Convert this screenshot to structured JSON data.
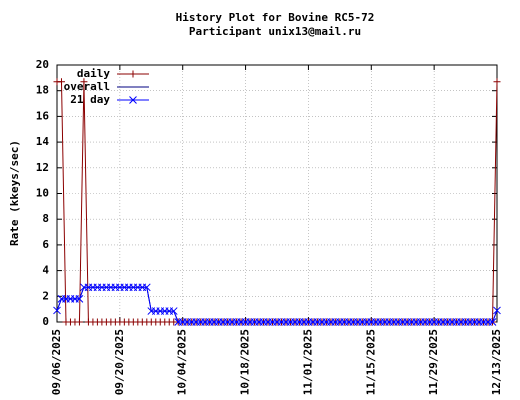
{
  "chart_data": {
    "type": "line",
    "title": "History Plot for Bovine RC5-72",
    "subtitle": "Participant unix13@mail.ru",
    "y_label": "Rate (kkeys/sec)",
    "x": [
      "09/06/2025",
      "09/07/2025",
      "09/08/2025",
      "09/09/2025",
      "09/10/2025",
      "09/11/2025",
      "09/12/2025",
      "09/13/2025",
      "09/14/2025",
      "09/15/2025",
      "09/16/2025",
      "09/17/2025",
      "09/18/2025",
      "09/19/2025",
      "09/20/2025",
      "09/21/2025",
      "09/22/2025",
      "09/23/2025",
      "09/24/2025",
      "09/25/2025",
      "09/26/2025",
      "09/27/2025",
      "09/28/2025",
      "09/29/2025",
      "09/30/2025",
      "10/01/2025",
      "10/02/2025",
      "10/03/2025",
      "10/04/2025",
      "10/05/2025",
      "10/06/2025",
      "10/07/2025",
      "10/08/2025",
      "10/09/2025",
      "10/10/2025",
      "10/11/2025",
      "10/12/2025",
      "10/13/2025",
      "10/14/2025",
      "10/15/2025",
      "10/16/2025",
      "10/17/2025",
      "10/18/2025",
      "10/19/2025",
      "10/20/2025",
      "10/21/2025",
      "10/22/2025",
      "10/23/2025",
      "10/24/2025",
      "10/25/2025",
      "10/26/2025",
      "10/27/2025",
      "10/28/2025",
      "10/29/2025",
      "10/30/2025",
      "10/31/2025",
      "11/01/2025",
      "11/02/2025",
      "11/03/2025",
      "11/04/2025",
      "11/05/2025",
      "11/06/2025",
      "11/07/2025",
      "11/08/2025",
      "11/09/2025",
      "11/10/2025",
      "11/11/2025",
      "11/12/2025",
      "11/13/2025",
      "11/14/2025",
      "11/15/2025",
      "11/16/2025",
      "11/17/2025",
      "11/18/2025",
      "11/19/2025",
      "11/20/2025",
      "11/21/2025",
      "11/22/2025",
      "11/23/2025",
      "11/24/2025",
      "11/25/2025",
      "11/26/2025",
      "11/27/2025",
      "11/28/2025",
      "11/29/2025",
      "11/30/2025",
      "12/01/2025",
      "12/02/2025",
      "12/03/2025",
      "12/04/2025",
      "12/05/2025",
      "12/06/2025",
      "12/07/2025",
      "12/08/2025",
      "12/09/2025",
      "12/10/2025",
      "12/11/2025",
      "12/12/2025",
      "12/13/2025"
    ],
    "series": [
      {
        "name": "daily",
        "color": "#8b0000",
        "marker": "plus",
        "values": [
          18.7,
          18.7,
          0,
          0,
          0,
          0,
          18.7,
          0,
          0,
          0,
          0,
          0,
          0,
          0,
          0,
          0,
          0,
          0,
          0,
          0,
          0,
          0,
          0,
          0,
          0,
          0,
          0,
          0,
          0,
          0,
          0,
          0,
          0,
          0,
          0,
          0,
          0,
          0,
          0,
          0,
          0,
          0,
          0,
          0,
          0,
          0,
          0,
          0,
          0,
          0,
          0,
          0,
          0,
          0,
          0,
          0,
          0,
          0,
          0,
          0,
          0,
          0,
          0,
          0,
          0,
          0,
          0,
          0,
          0,
          0,
          0,
          0,
          0,
          0,
          0,
          0,
          0,
          0,
          0,
          0,
          0,
          0,
          0,
          0,
          0,
          0,
          0,
          0,
          0,
          0,
          0,
          0,
          0,
          0,
          0,
          0,
          0,
          0,
          18.7
        ]
      },
      {
        "name": "overall",
        "color": "#000080",
        "marker": "none",
        "values": [
          0.9,
          1.8,
          1.8,
          1.8,
          1.8,
          1.8,
          2.7,
          2.7,
          2.7,
          2.7,
          2.7,
          2.7,
          2.7,
          2.7,
          2.7,
          2.7,
          2.7,
          2.7,
          2.7,
          2.7,
          2.7,
          0.85,
          0.85,
          0.85,
          0.85,
          0.85,
          0.85,
          0,
          0,
          0,
          0,
          0,
          0,
          0,
          0,
          0,
          0,
          0,
          0,
          0,
          0,
          0,
          0,
          0,
          0,
          0,
          0,
          0,
          0,
          0,
          0,
          0,
          0,
          0,
          0,
          0,
          0,
          0,
          0,
          0,
          0,
          0,
          0,
          0,
          0,
          0,
          0,
          0,
          0,
          0,
          0,
          0,
          0,
          0,
          0,
          0,
          0,
          0,
          0,
          0,
          0,
          0,
          0,
          0,
          0,
          0,
          0,
          0,
          0,
          0,
          0,
          0,
          0,
          0,
          0,
          0,
          0,
          0,
          0.9
        ]
      },
      {
        "name": "21 day",
        "color": "#0000ff",
        "marker": "cross",
        "values": [
          0.9,
          1.8,
          1.8,
          1.8,
          1.8,
          1.8,
          2.7,
          2.7,
          2.7,
          2.7,
          2.7,
          2.7,
          2.7,
          2.7,
          2.7,
          2.7,
          2.7,
          2.7,
          2.7,
          2.7,
          2.7,
          0.85,
          0.85,
          0.85,
          0.85,
          0.85,
          0.85,
          0,
          0,
          0,
          0,
          0,
          0,
          0,
          0,
          0,
          0,
          0,
          0,
          0,
          0,
          0,
          0,
          0,
          0,
          0,
          0,
          0,
          0,
          0,
          0,
          0,
          0,
          0,
          0,
          0,
          0,
          0,
          0,
          0,
          0,
          0,
          0,
          0,
          0,
          0,
          0,
          0,
          0,
          0,
          0,
          0,
          0,
          0,
          0,
          0,
          0,
          0,
          0,
          0,
          0,
          0,
          0,
          0,
          0,
          0,
          0,
          0,
          0,
          0,
          0,
          0,
          0,
          0,
          0,
          0,
          0,
          0,
          0.9
        ]
      }
    ],
    "xlim": [
      "09/06/2025",
      "12/13/2025"
    ],
    "xticks": [
      "09/06/2025",
      "09/20/2025",
      "10/04/2025",
      "10/18/2025",
      "11/01/2025",
      "11/15/2025",
      "11/29/2025",
      "12/13/2025"
    ],
    "ylim": [
      0,
      20
    ],
    "yticks": [
      0,
      2,
      4,
      6,
      8,
      10,
      12,
      14,
      16,
      18,
      20
    ],
    "grid": true,
    "legend": "top-left"
  }
}
